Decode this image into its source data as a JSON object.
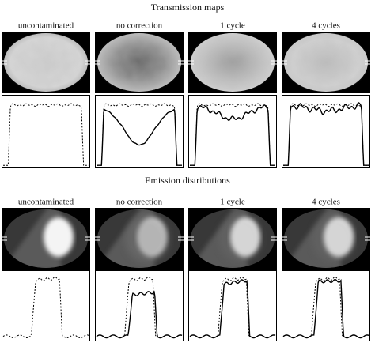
{
  "sections": [
    {
      "title": "Transmission maps",
      "columns": [
        "uncontaminated",
        "no correction",
        "1 cycle",
        "4 cycles"
      ]
    },
    {
      "title": "Emission distributions",
      "columns": [
        "uncontaminated",
        "no correction",
        "1 cycle",
        "4 cycles"
      ]
    }
  ]
}
